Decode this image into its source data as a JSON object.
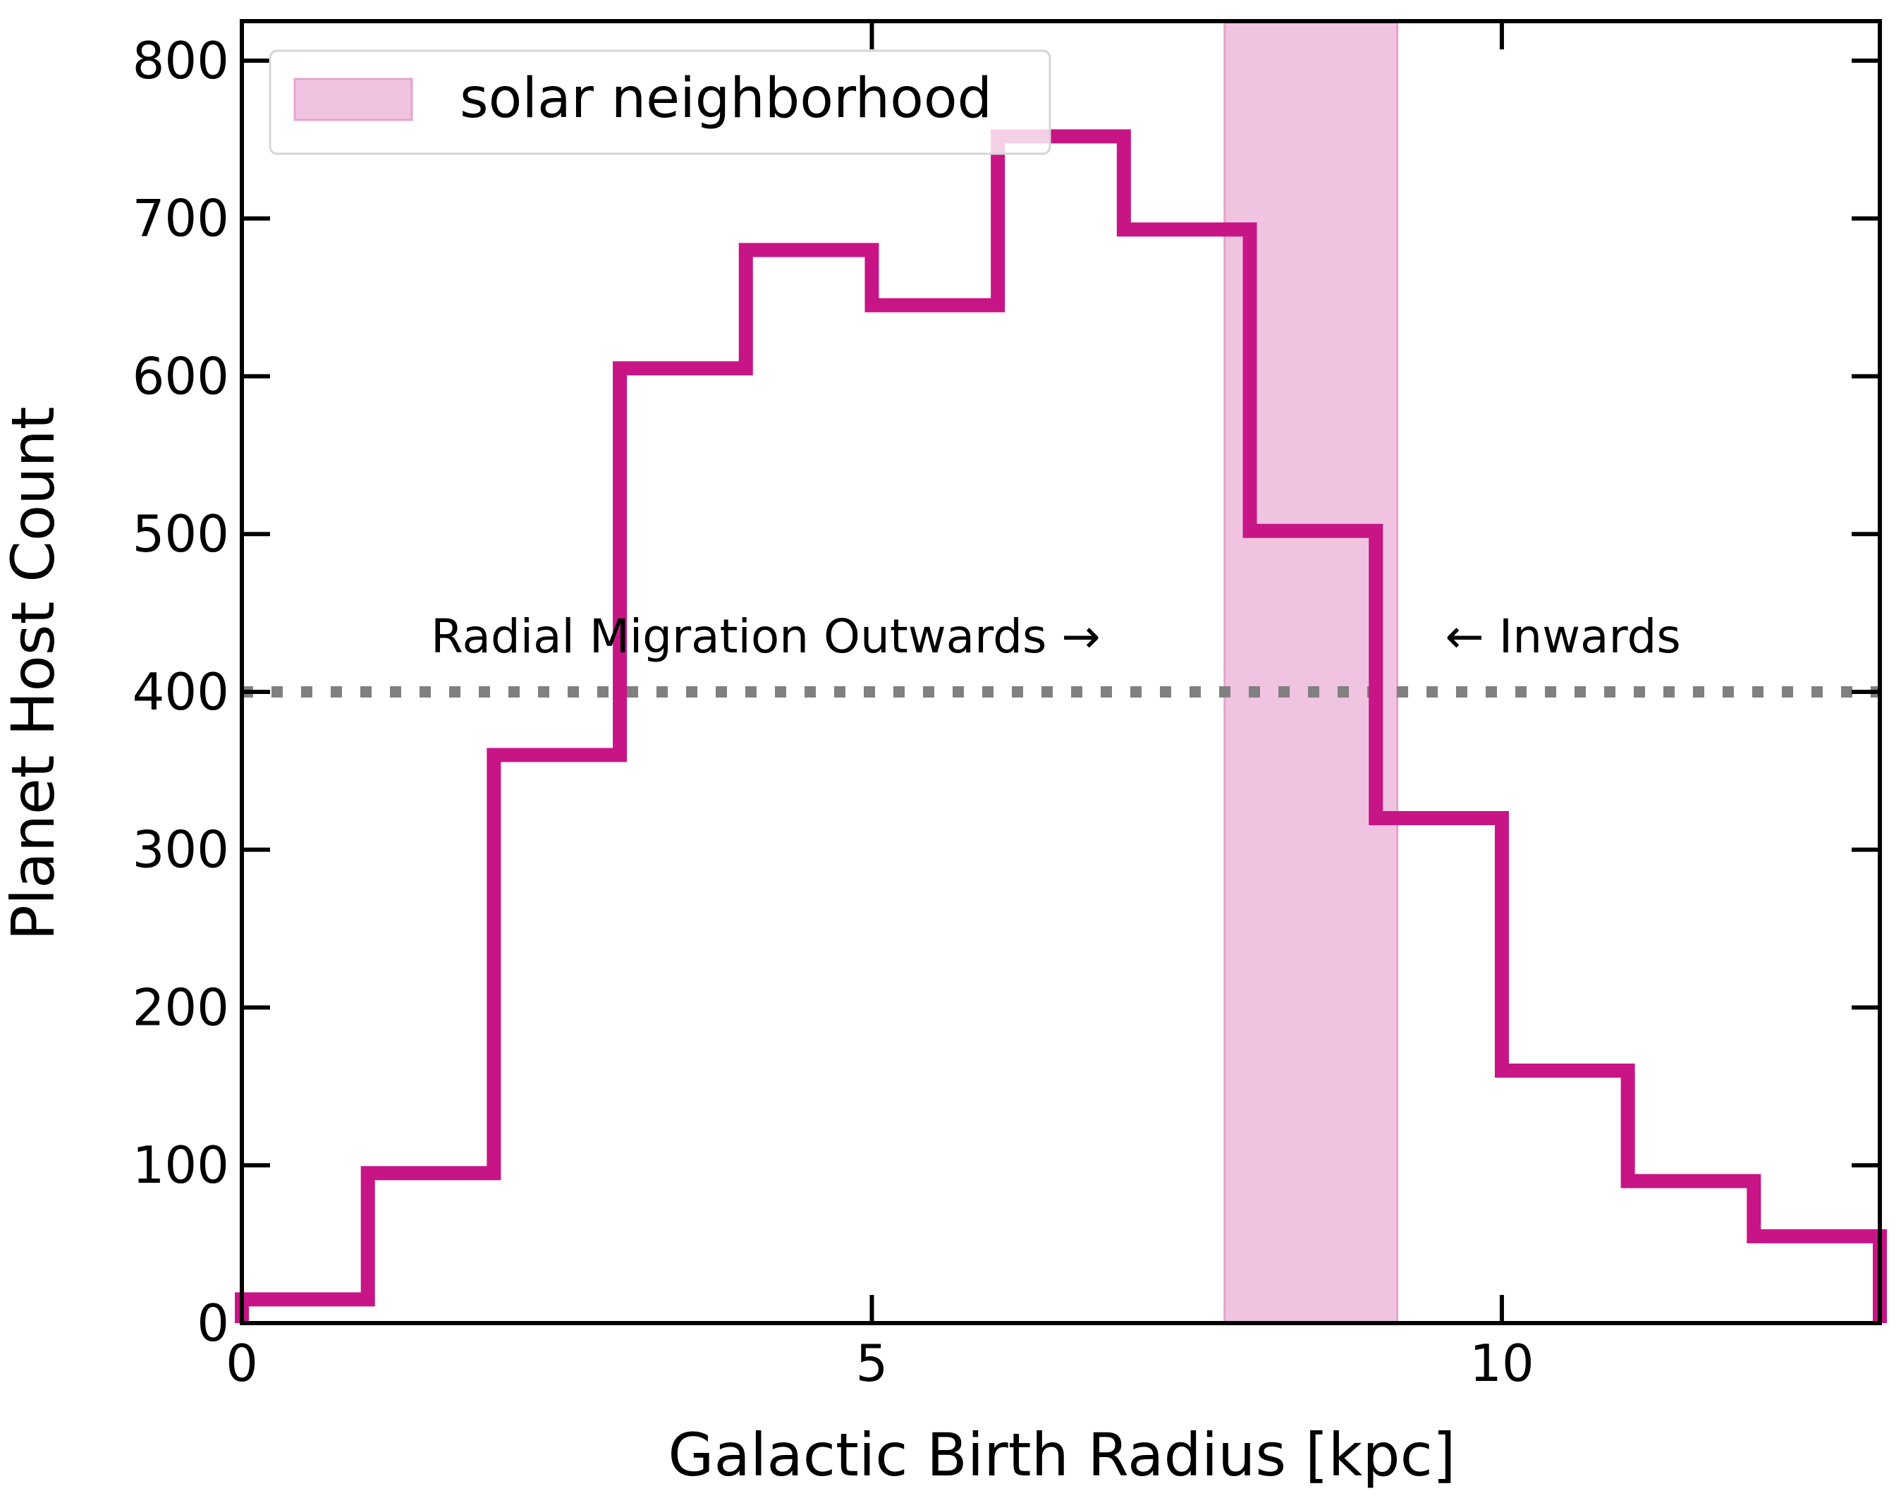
{
  "chart_data": {
    "type": "histogram",
    "xlabel": "Galactic Birth Radius [kpc]",
    "ylabel": "Planet Host Count",
    "xlim": [
      0,
      13
    ],
    "ylim": [
      0,
      825
    ],
    "xticks": [
      0,
      5,
      10
    ],
    "yticks": [
      0,
      100,
      200,
      300,
      400,
      500,
      600,
      700,
      800
    ],
    "bin_edges": [
      0,
      1,
      2,
      3,
      4,
      5,
      6,
      7,
      8,
      9,
      10,
      11,
      12,
      13
    ],
    "counts": [
      15,
      95,
      360,
      605,
      680,
      645,
      752,
      693,
      502,
      320,
      160,
      90,
      55
    ],
    "series": [
      {
        "name": "",
        "color": "#c71585"
      }
    ],
    "shaded_region": {
      "label": "solar neighborhood",
      "x": [
        7.8,
        9.17
      ],
      "color": "#f0c3e0",
      "edge_color": "#e3a4cd"
    },
    "reference_line": {
      "y": 400,
      "style": "dotted",
      "color": "#808080"
    },
    "annotations": [
      {
        "text": "Radial Migration Outwards →",
        "x": 1.5,
        "y": 425
      },
      {
        "text": "← Inwards",
        "x": 9.55,
        "y": 425
      }
    ],
    "legend": {
      "placement": "top-left"
    },
    "grid": false
  }
}
